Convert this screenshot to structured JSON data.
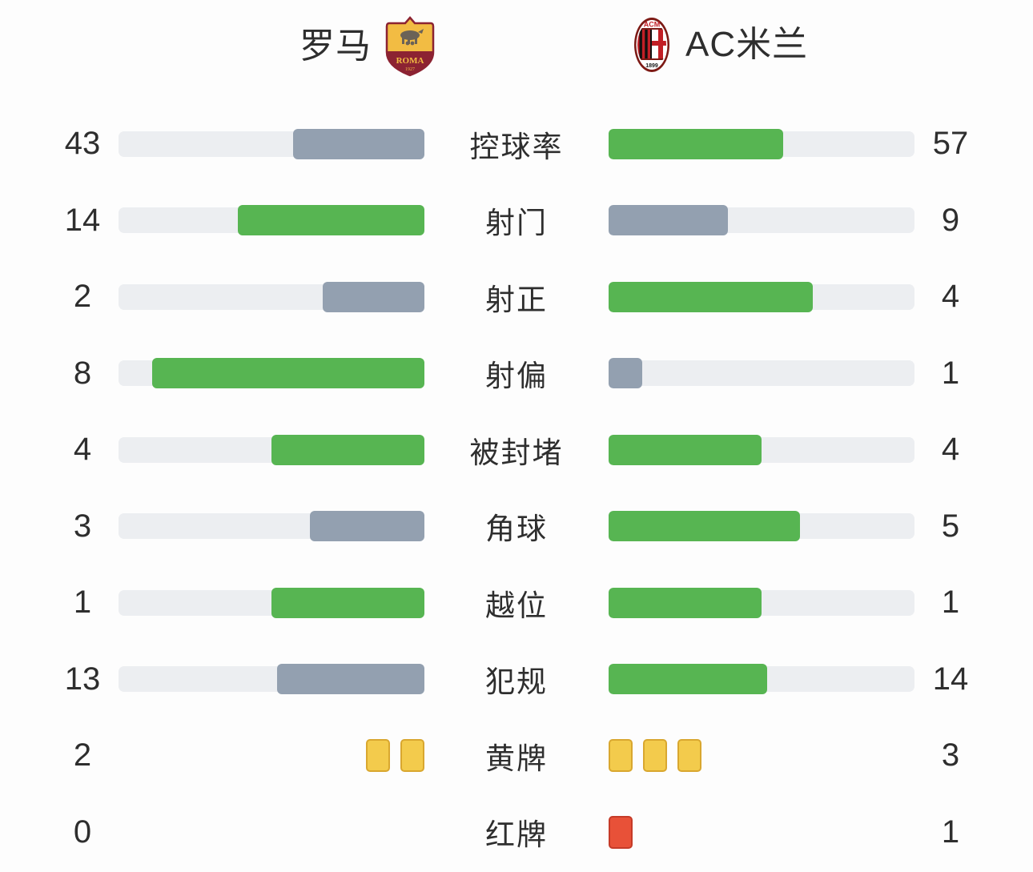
{
  "header": {
    "home_team": "罗马",
    "away_team": "AC米兰"
  },
  "colors": {
    "green": "#57b552",
    "gray": "#93a0b0",
    "track": "#eceef1",
    "yellow_card": "#f3cb4c",
    "yellow_card_border": "#d9a72f",
    "red_card": "#e85138",
    "red_card_border": "#c53b28",
    "text": "#2e2e2e"
  },
  "chart_data": {
    "type": "bar",
    "categories": [
      "控球率",
      "射门",
      "射正",
      "射偏",
      "被封堵",
      "角球",
      "越位",
      "犯规",
      "黄牌",
      "红牌"
    ],
    "series": [
      {
        "name": "罗马",
        "values": [
          43,
          14,
          2,
          8,
          4,
          3,
          1,
          13,
          2,
          0
        ]
      },
      {
        "name": "AC米兰",
        "values": [
          57,
          9,
          4,
          1,
          4,
          5,
          1,
          14,
          3,
          1
        ]
      }
    ],
    "layout": "mirrored horizontal bars, labels centered, home bars grow leftward from center, away bars grow rightward",
    "color_rule": "higher value green, lower value gray-blue, tie both green"
  },
  "rows": [
    {
      "label": "控球率",
      "home": "43",
      "away": "57",
      "home_pct": 43,
      "away_pct": 57,
      "home_color": "gray",
      "away_color": "green"
    },
    {
      "label": "射门",
      "home": "14",
      "away": "9",
      "home_pct": 60.9,
      "away_pct": 39.1,
      "home_color": "green",
      "away_color": "gray"
    },
    {
      "label": "射正",
      "home": "2",
      "away": "4",
      "home_pct": 33.3,
      "away_pct": 66.7,
      "home_color": "gray",
      "away_color": "green"
    },
    {
      "label": "射偏",
      "home": "8",
      "away": "1",
      "home_pct": 88.9,
      "away_pct": 11.1,
      "home_color": "green",
      "away_color": "gray"
    },
    {
      "label": "被封堵",
      "home": "4",
      "away": "4",
      "home_pct": 50,
      "away_pct": 50,
      "home_color": "green",
      "away_color": "green"
    },
    {
      "label": "角球",
      "home": "3",
      "away": "5",
      "home_pct": 37.5,
      "away_pct": 62.5,
      "home_color": "gray",
      "away_color": "green"
    },
    {
      "label": "越位",
      "home": "1",
      "away": "1",
      "home_pct": 50,
      "away_pct": 50,
      "home_color": "green",
      "away_color": "green"
    },
    {
      "label": "犯规",
      "home": "13",
      "away": "14",
      "home_pct": 48.1,
      "away_pct": 51.9,
      "home_color": "gray",
      "away_color": "green"
    }
  ],
  "card_rows": [
    {
      "label": "黄牌",
      "home": "2",
      "away": "3",
      "home_cards": 2,
      "away_cards": 3,
      "card_type": "yellow"
    },
    {
      "label": "红牌",
      "home": "0",
      "away": "1",
      "home_cards": 0,
      "away_cards": 1,
      "card_type": "red"
    }
  ]
}
